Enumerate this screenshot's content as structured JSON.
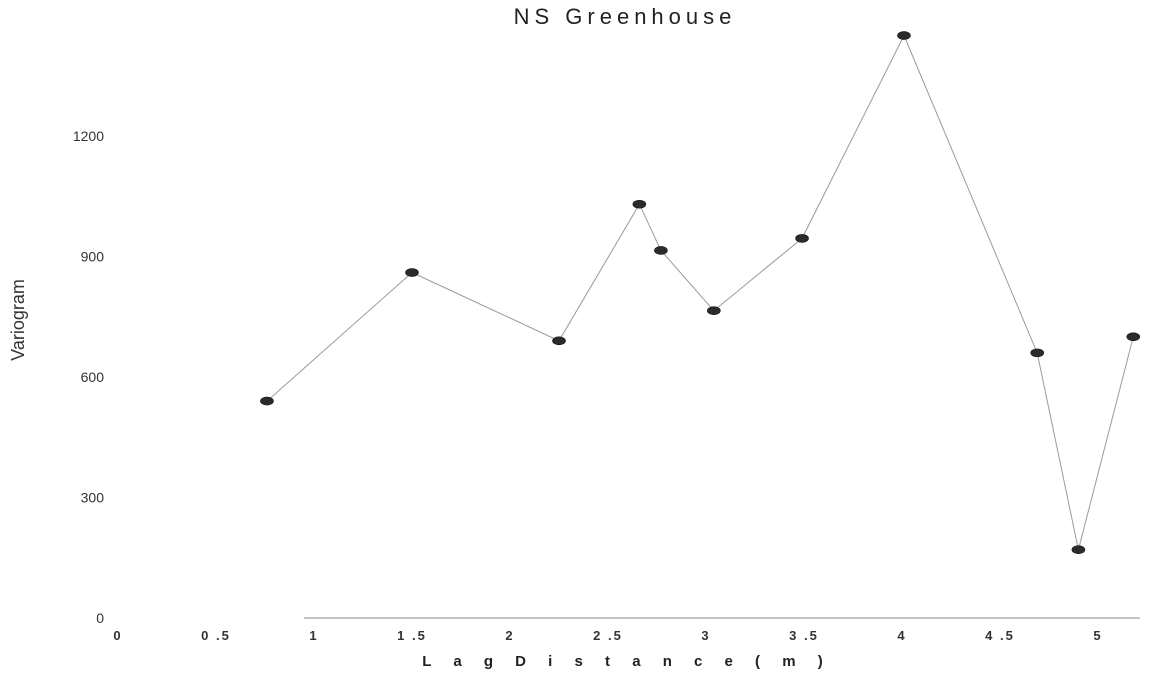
{
  "chart_data": {
    "type": "line",
    "title": "NS Greenhouse",
    "xlabel": "L a g   D i s t a n c e  ( m )",
    "ylabel": "Variogram",
    "xlim": [
      0,
      5.2
    ],
    "ylim": [
      0,
      1450
    ],
    "x_ticks": [
      "0",
      "0 .5",
      "1",
      "1 .5",
      "2",
      "2 .5",
      "3",
      "3 .5",
      "4",
      "4 .5",
      "5"
    ],
    "x_tick_values": [
      0,
      0.5,
      1,
      1.5,
      2,
      2.5,
      3,
      3.5,
      4,
      4.5,
      5
    ],
    "y_ticks": [
      "0",
      "300",
      "600",
      "900",
      "1200"
    ],
    "y_tick_values": [
      0,
      300,
      600,
      900,
      1200
    ],
    "grid": false,
    "series": [
      {
        "x": [
          0.76,
          1.5,
          2.25,
          2.66,
          2.77,
          3.04,
          3.49,
          4.01,
          4.69,
          4.9,
          5.18
        ],
        "y": [
          540,
          860,
          690,
          1030,
          915,
          765,
          945,
          1450,
          660,
          170,
          700
        ]
      }
    ],
    "colors": {
      "line": "#9a9a9a",
      "marker": "#2b2b2b"
    }
  }
}
